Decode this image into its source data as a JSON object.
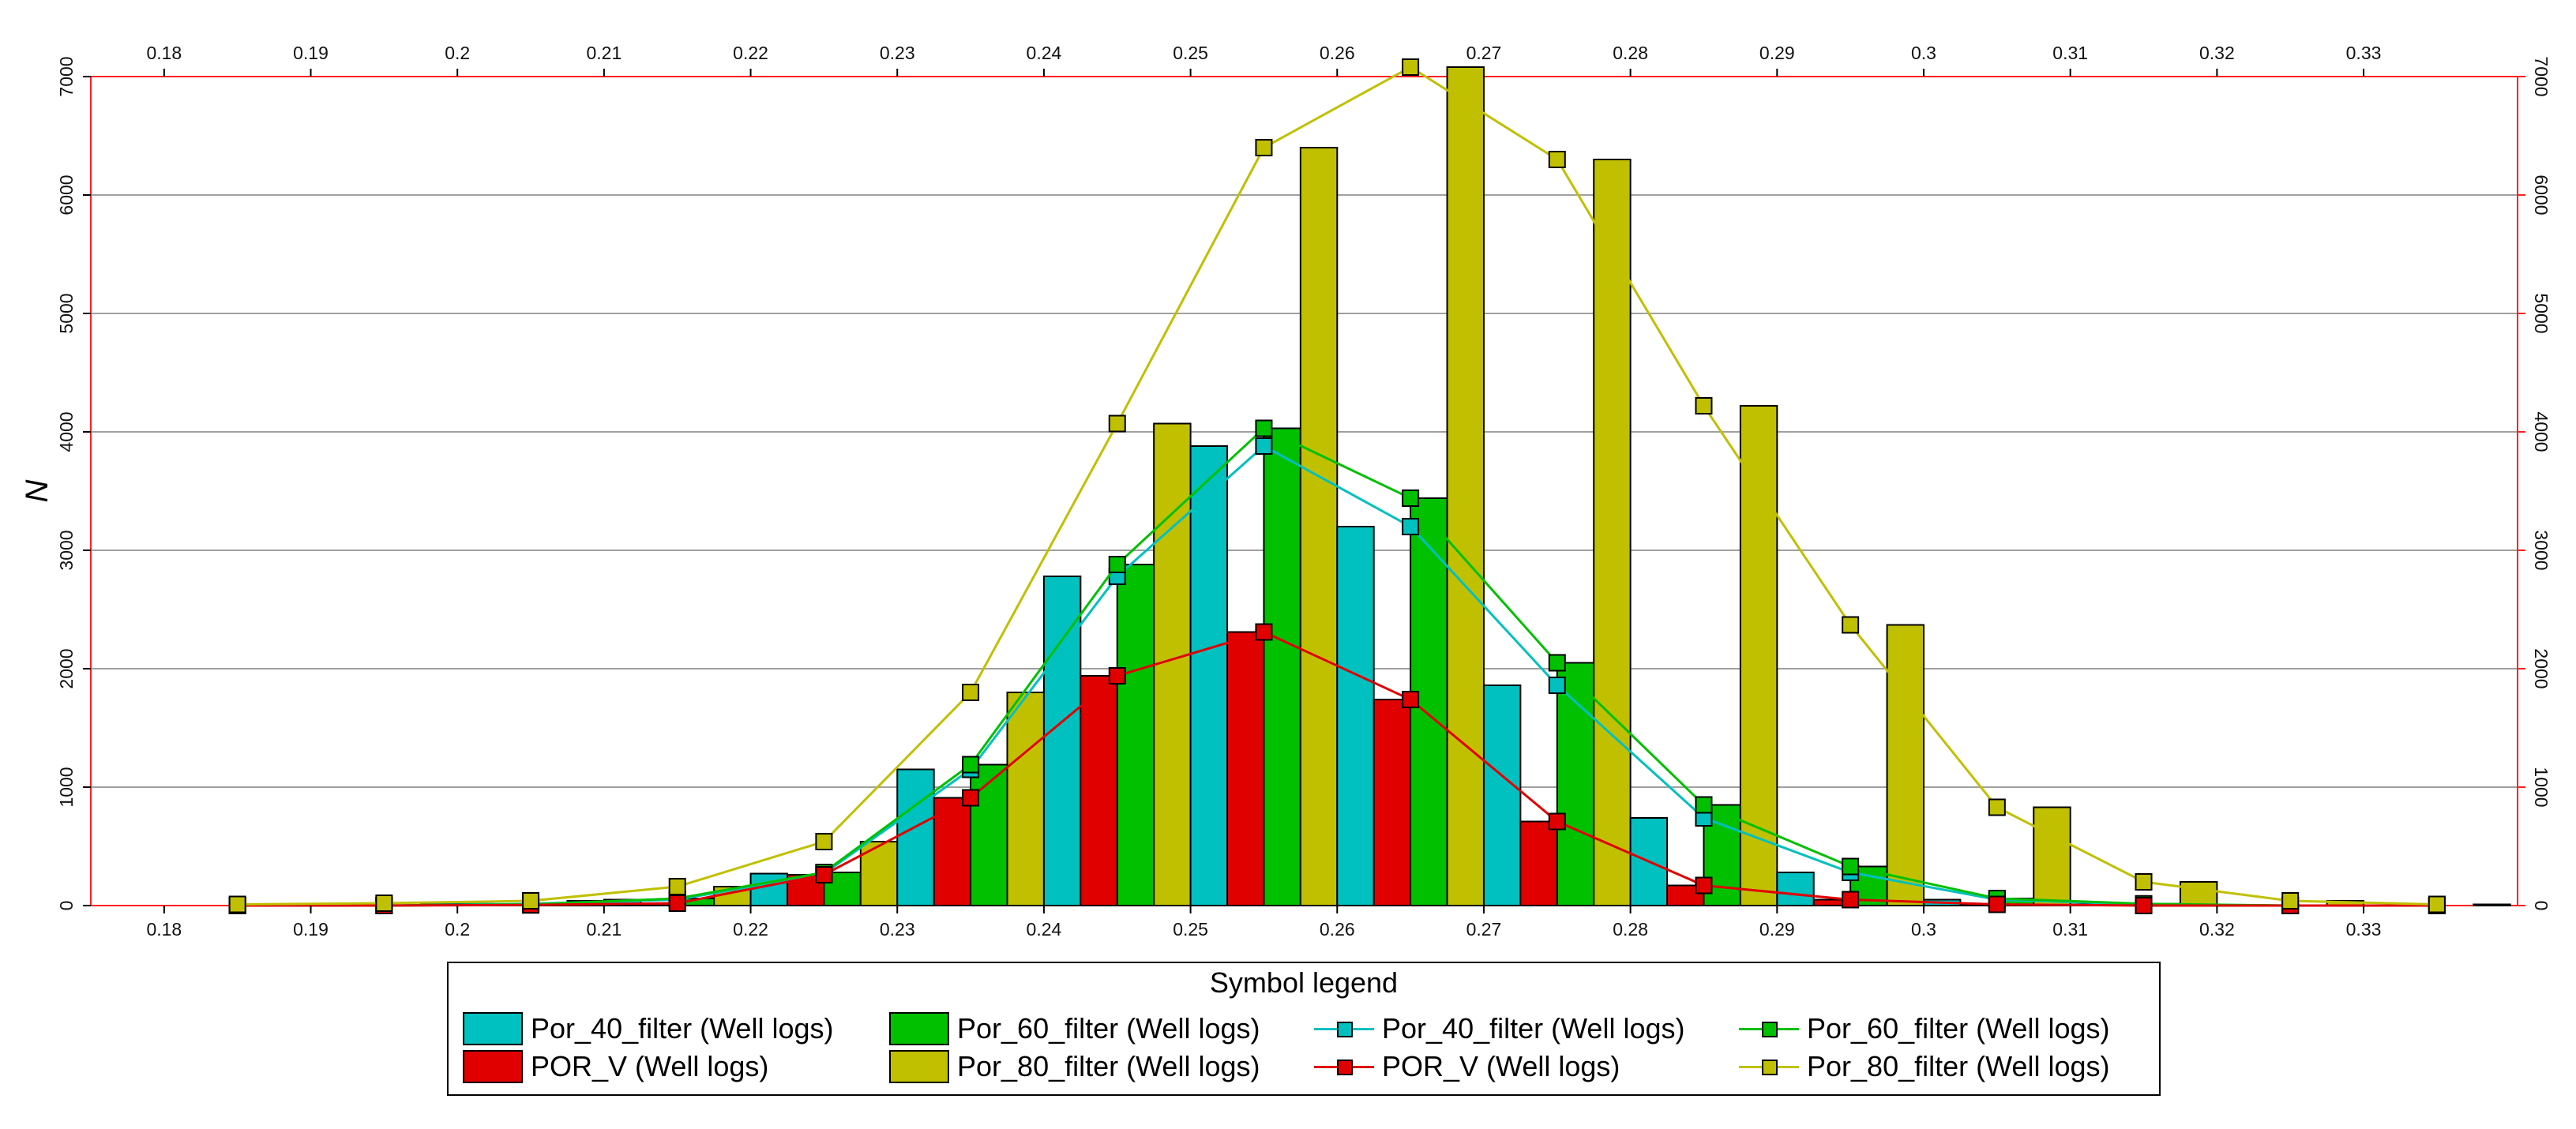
{
  "chart_data": {
    "type": "bar",
    "ylabel": "N",
    "xlim": [
      0.175,
      0.3405
    ],
    "ylim": [
      0,
      7000
    ],
    "x_ticks": [
      "0.18",
      "0.19",
      "0.2",
      "0.21",
      "0.22",
      "0.23",
      "0.24",
      "0.25",
      "0.26",
      "0.27",
      "0.28",
      "0.29",
      "0.3",
      "0.31",
      "0.32",
      "0.33"
    ],
    "y_ticks": [
      "0",
      "1000",
      "2000",
      "3000",
      "4000",
      "5000",
      "6000",
      "7000"
    ],
    "grid": true,
    "bin_centers": [
      0.185,
      0.195,
      0.205,
      0.215,
      0.225,
      0.235,
      0.245,
      0.255,
      0.265,
      0.275,
      0.285,
      0.295,
      0.305,
      0.315,
      0.325,
      0.335
    ],
    "series": [
      {
        "name": "Por_40_filter (Well logs)",
        "kind": "bar",
        "color": "#00c0c0",
        "values": [
          0,
          0,
          15,
          50,
          270,
          1150,
          2780,
          3880,
          3200,
          1860,
          740,
          280,
          50,
          10,
          0,
          0
        ]
      },
      {
        "name": "POR_V (Well logs)",
        "kind": "bar",
        "color": "#e00000",
        "values": [
          0,
          0,
          5,
          20,
          260,
          910,
          1940,
          2310,
          1740,
          710,
          170,
          50,
          10,
          0,
          0,
          0
        ]
      },
      {
        "name": "Por_60_filter (Well logs)",
        "kind": "bar",
        "color": "#00c000",
        "values": [
          0,
          0,
          10,
          60,
          280,
          1190,
          2880,
          4030,
          3440,
          2050,
          850,
          330,
          60,
          15,
          0,
          0
        ]
      },
      {
        "name": "Por_80_filter (Well logs)",
        "kind": "bar",
        "color": "#c0c000",
        "values": [
          10,
          20,
          40,
          160,
          540,
          1800,
          4070,
          6400,
          7080,
          6300,
          4220,
          2370,
          830,
          200,
          40,
          10
        ]
      },
      {
        "name": "Por_40_filter (Well logs)",
        "kind": "line",
        "color": "#00c0c0",
        "values": [
          0,
          0,
          15,
          50,
          270,
          1150,
          2780,
          3880,
          3200,
          1860,
          740,
          280,
          50,
          10,
          0,
          0
        ]
      },
      {
        "name": "Por_60_filter (Well logs)",
        "kind": "line",
        "color": "#00c000",
        "values": [
          0,
          0,
          10,
          60,
          280,
          1190,
          2880,
          4030,
          3440,
          2050,
          850,
          330,
          60,
          15,
          0,
          0
        ]
      },
      {
        "name": "POR_V (Well logs)",
        "kind": "line",
        "color": "#e00000",
        "values": [
          0,
          0,
          5,
          20,
          260,
          910,
          1940,
          2310,
          1740,
          710,
          170,
          50,
          10,
          0,
          0,
          0
        ]
      },
      {
        "name": "Por_80_filter (Well logs)",
        "kind": "line",
        "color": "#c0c000",
        "values": [
          10,
          20,
          40,
          160,
          540,
          1800,
          4070,
          6400,
          7080,
          6300,
          4220,
          2370,
          830,
          200,
          40,
          10
        ]
      }
    ],
    "legend_title": "Symbol legend",
    "legend_position": "bottom"
  }
}
